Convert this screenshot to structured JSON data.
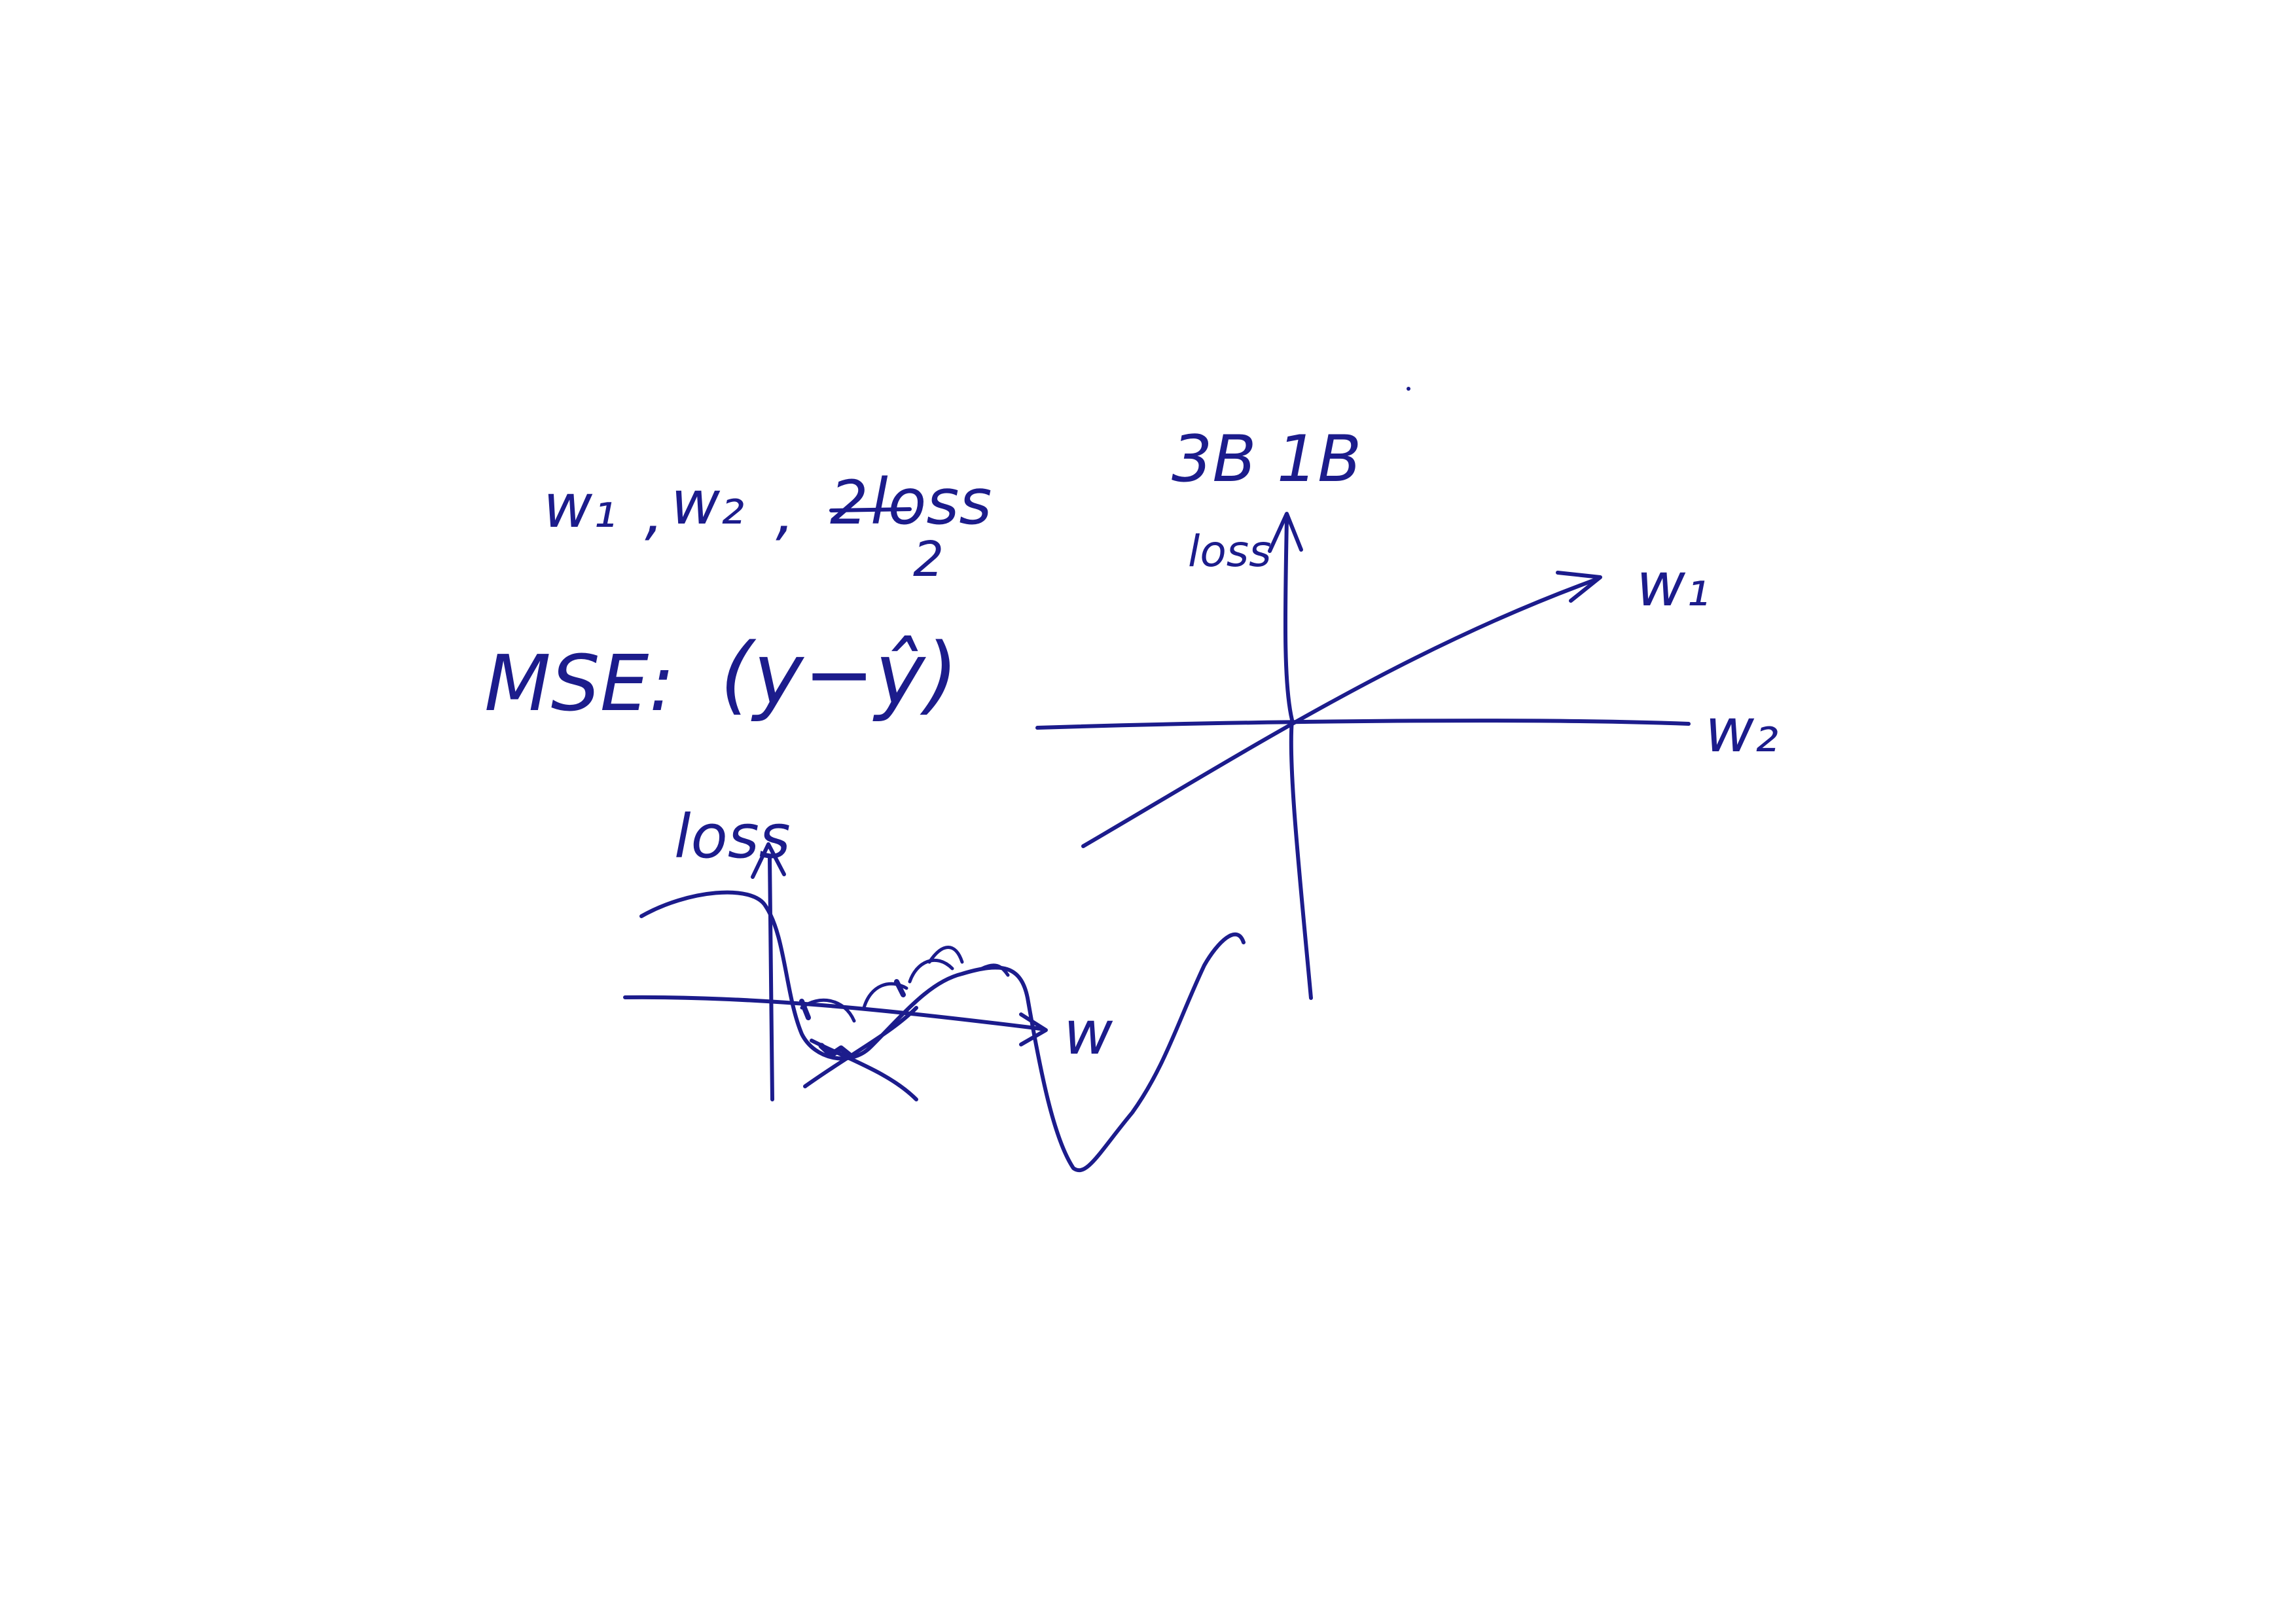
{
  "ink_color": "#1c1c8c",
  "paper_color": "#ffffff",
  "notes": {
    "weights_line": {
      "w1": "w₁",
      "sep1": ",",
      "w2": "w₂",
      "sep2": ",",
      "loss": "loss",
      "struck_prefix": "2"
    },
    "mse_label": "MSE:",
    "mse_formula": "(y−ŷ)",
    "mse_exponent": "2"
  },
  "diagram_3d": {
    "top_label": "3B 1B",
    "vertical_axis_label": "loss",
    "axis_label_w1": "w₁",
    "axis_label_w2": "w₂"
  },
  "diagram_2d": {
    "vertical_axis_label": "loss",
    "horizontal_axis_label": "w"
  }
}
